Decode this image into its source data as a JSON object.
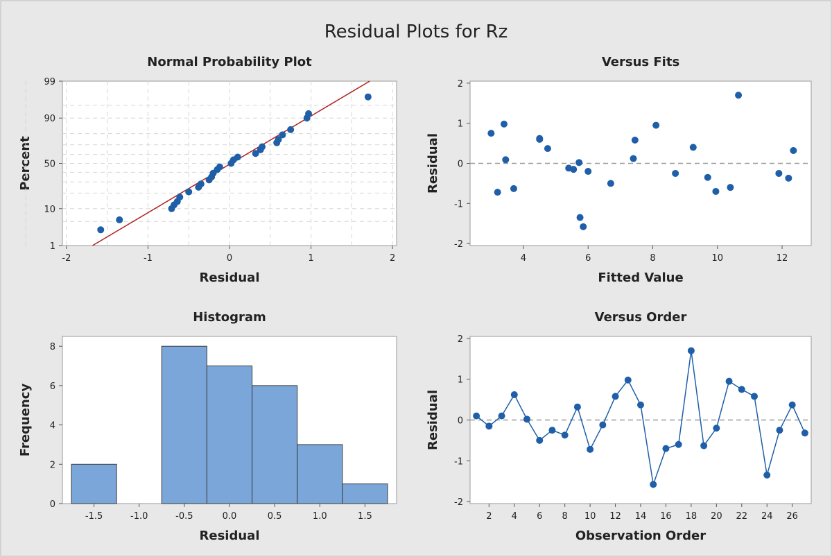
{
  "title": "Residual Plots for Rz",
  "colors": {
    "point": "#1f5fa8",
    "fitline": "#b0201e",
    "bar": "#7ba6da",
    "bar_edge": "#3a3a3a",
    "grid": "#d6d6d6",
    "ref": "#999999"
  },
  "chart_data": [
    {
      "type": "scatter",
      "title": "Normal Probability Plot",
      "xlabel": "Residual",
      "ylabel": "Percent",
      "xlim": [
        -2.05,
        2.05
      ],
      "xticks": [
        -2,
        -1,
        0,
        1,
        2
      ],
      "yticks": [
        1,
        10,
        50,
        90,
        99
      ],
      "yscale": "normal-probability",
      "grid": true,
      "fit_line": {
        "x": [
          -1.68,
          1.72
        ],
        "y": [
          1,
          99
        ]
      },
      "points": [
        {
          "x": -1.58,
          "y": 3.0
        },
        {
          "x": -1.35,
          "y": 5.5
        },
        {
          "x": -0.71,
          "y": 10
        },
        {
          "x": -0.68,
          "y": 12
        },
        {
          "x": -0.64,
          "y": 14
        },
        {
          "x": -0.61,
          "y": 17
        },
        {
          "x": -0.5,
          "y": 21
        },
        {
          "x": -0.38,
          "y": 25
        },
        {
          "x": -0.35,
          "y": 28
        },
        {
          "x": -0.25,
          "y": 32
        },
        {
          "x": -0.22,
          "y": 35
        },
        {
          "x": -0.2,
          "y": 39
        },
        {
          "x": -0.15,
          "y": 43
        },
        {
          "x": -0.12,
          "y": 46
        },
        {
          "x": 0.02,
          "y": 50
        },
        {
          "x": 0.05,
          "y": 54
        },
        {
          "x": 0.1,
          "y": 57
        },
        {
          "x": 0.32,
          "y": 61
        },
        {
          "x": 0.38,
          "y": 65
        },
        {
          "x": 0.4,
          "y": 68
        },
        {
          "x": 0.58,
          "y": 72
        },
        {
          "x": 0.6,
          "y": 75
        },
        {
          "x": 0.65,
          "y": 79
        },
        {
          "x": 0.75,
          "y": 83
        },
        {
          "x": 0.95,
          "y": 90
        },
        {
          "x": 0.97,
          "y": 92
        },
        {
          "x": 1.7,
          "y": 97
        }
      ]
    },
    {
      "type": "scatter",
      "title": "Versus Fits",
      "xlabel": "Fitted Value",
      "ylabel": "Residual",
      "xlim": [
        2.35,
        12.9
      ],
      "ylim": [
        -2.05,
        2.05
      ],
      "xticks": [
        4,
        6,
        8,
        10,
        12
      ],
      "yticks": [
        -2,
        -1,
        0,
        1,
        2
      ],
      "reference_line": 0,
      "points": [
        {
          "x": 3.0,
          "y": 0.75
        },
        {
          "x": 3.2,
          "y": -0.72
        },
        {
          "x": 3.4,
          "y": 0.98
        },
        {
          "x": 3.45,
          "y": 0.09
        },
        {
          "x": 3.7,
          "y": -0.63
        },
        {
          "x": 4.5,
          "y": 0.62
        },
        {
          "x": 4.5,
          "y": 0.6
        },
        {
          "x": 4.75,
          "y": 0.37
        },
        {
          "x": 5.4,
          "y": -0.12
        },
        {
          "x": 5.55,
          "y": -0.15
        },
        {
          "x": 5.72,
          "y": 0.02
        },
        {
          "x": 5.75,
          "y": -1.35
        },
        {
          "x": 5.85,
          "y": -1.58
        },
        {
          "x": 6.0,
          "y": -0.2
        },
        {
          "x": 6.7,
          "y": -0.5
        },
        {
          "x": 7.4,
          "y": 0.12
        },
        {
          "x": 7.45,
          "y": 0.58
        },
        {
          "x": 8.1,
          "y": 0.95
        },
        {
          "x": 8.7,
          "y": -0.25
        },
        {
          "x": 9.25,
          "y": 0.4
        },
        {
          "x": 9.7,
          "y": -0.35
        },
        {
          "x": 9.95,
          "y": -0.7
        },
        {
          "x": 10.4,
          "y": -0.6
        },
        {
          "x": 10.65,
          "y": 1.7
        },
        {
          "x": 11.9,
          "y": -0.25
        },
        {
          "x": 12.2,
          "y": -0.37
        },
        {
          "x": 12.35,
          "y": 0.32
        }
      ]
    },
    {
      "type": "bar",
      "title": "Histogram",
      "xlabel": "Residual",
      "ylabel": "Frequency",
      "xlim": [
        -1.85,
        1.85
      ],
      "ylim": [
        0,
        8.5
      ],
      "xticks": [
        -1.5,
        -1.0,
        -0.5,
        0.0,
        0.5,
        1.0,
        1.5
      ],
      "xtick_labels": [
        "-1.5",
        "-1.0",
        "-0.5",
        "0.0",
        "0.5",
        "1.0",
        "1.5"
      ],
      "yticks": [
        0,
        2,
        4,
        6,
        8
      ],
      "bin_edges": [
        -1.75,
        -1.25,
        -0.75,
        -0.25,
        0.25,
        0.75,
        1.25,
        1.75
      ],
      "values": [
        2,
        0,
        8,
        7,
        6,
        3,
        1
      ]
    },
    {
      "type": "line",
      "title": "Versus Order",
      "xlabel": "Observation Order",
      "ylabel": "Residual",
      "xlim": [
        0.5,
        27.5
      ],
      "ylim": [
        -2.05,
        2.05
      ],
      "xticks": [
        2,
        4,
        6,
        8,
        10,
        12,
        14,
        16,
        18,
        20,
        22,
        24,
        26
      ],
      "yticks": [
        -2,
        -1,
        0,
        1,
        2
      ],
      "reference_line": 0,
      "x": [
        1,
        2,
        3,
        4,
        5,
        6,
        7,
        8,
        9,
        10,
        11,
        12,
        13,
        14,
        15,
        16,
        17,
        18,
        19,
        20,
        21,
        22,
        23,
        24,
        25,
        26,
        27
      ],
      "y": [
        0.1,
        -0.15,
        0.1,
        0.62,
        0.02,
        -0.5,
        -0.25,
        -0.37,
        0.32,
        -0.72,
        -0.12,
        0.58,
        0.98,
        0.37,
        -1.58,
        -0.7,
        -0.6,
        1.7,
        -0.63,
        -0.2,
        0.95,
        0.75,
        0.58,
        -1.35,
        -0.25,
        0.37,
        -0.32
      ]
    }
  ]
}
